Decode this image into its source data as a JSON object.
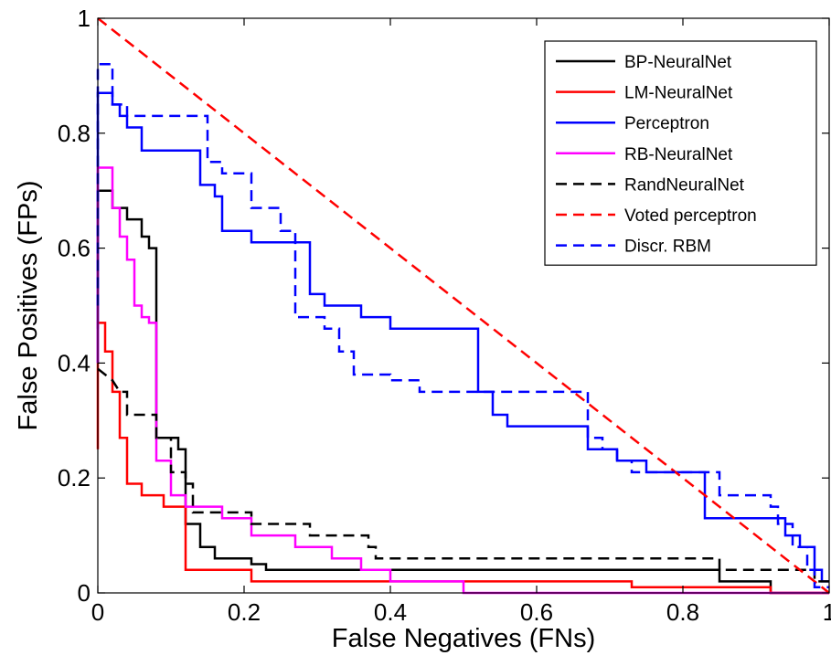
{
  "chart_data": {
    "type": "line",
    "title": "",
    "xlabel": "False Negatives (FNs)",
    "ylabel": "False Positives (FPs)",
    "xlim": [
      0,
      1
    ],
    "ylim": [
      0,
      1
    ],
    "xticks": [
      0,
      0.2,
      0.4,
      0.6,
      0.8,
      1
    ],
    "xtick_labels": [
      "0",
      "0.2",
      "0.4",
      "0.6",
      "0.8",
      "1"
    ],
    "yticks": [
      0,
      0.2,
      0.4,
      0.6,
      0.8,
      1
    ],
    "ytick_labels": [
      "0",
      "0.2",
      "0.4",
      "0.6",
      "0.8",
      "1"
    ],
    "grid": false,
    "legend_position": "top-right",
    "series": [
      {
        "name": "BP-NeuralNet",
        "color": "#000000",
        "dash": "solid",
        "points": [
          [
            0,
            0.46
          ],
          [
            0,
            0.7
          ],
          [
            0.02,
            0.7
          ],
          [
            0.02,
            0.67
          ],
          [
            0.04,
            0.67
          ],
          [
            0.04,
            0.65
          ],
          [
            0.06,
            0.65
          ],
          [
            0.06,
            0.62
          ],
          [
            0.07,
            0.62
          ],
          [
            0.07,
            0.6
          ],
          [
            0.08,
            0.6
          ],
          [
            0.08,
            0.27
          ],
          [
            0.11,
            0.27
          ],
          [
            0.11,
            0.25
          ],
          [
            0.12,
            0.25
          ],
          [
            0.12,
            0.12
          ],
          [
            0.14,
            0.12
          ],
          [
            0.14,
            0.08
          ],
          [
            0.16,
            0.08
          ],
          [
            0.16,
            0.06
          ],
          [
            0.21,
            0.06
          ],
          [
            0.21,
            0.05
          ],
          [
            0.23,
            0.05
          ],
          [
            0.23,
            0.04
          ],
          [
            0.85,
            0.04
          ],
          [
            0.85,
            0.02
          ],
          [
            0.92,
            0.02
          ],
          [
            0.92,
            0.0
          ],
          [
            1.0,
            0.0
          ]
        ]
      },
      {
        "name": "LM-NeuralNet",
        "color": "#ff0000",
        "dash": "solid",
        "points": [
          [
            0,
            0.25
          ],
          [
            0,
            0.47
          ],
          [
            0.01,
            0.47
          ],
          [
            0.01,
            0.42
          ],
          [
            0.02,
            0.42
          ],
          [
            0.02,
            0.35
          ],
          [
            0.03,
            0.35
          ],
          [
            0.03,
            0.27
          ],
          [
            0.04,
            0.27
          ],
          [
            0.04,
            0.19
          ],
          [
            0.06,
            0.19
          ],
          [
            0.06,
            0.17
          ],
          [
            0.09,
            0.17
          ],
          [
            0.09,
            0.15
          ],
          [
            0.12,
            0.15
          ],
          [
            0.12,
            0.04
          ],
          [
            0.21,
            0.04
          ],
          [
            0.21,
            0.02
          ],
          [
            0.73,
            0.02
          ],
          [
            0.73,
            0.01
          ],
          [
            0.92,
            0.01
          ],
          [
            0.92,
            0.0
          ],
          [
            1.0,
            0.0
          ]
        ]
      },
      {
        "name": "Perceptron",
        "color": "#0000ff",
        "dash": "solid",
        "points": [
          [
            0,
            0.4
          ],
          [
            0,
            0.87
          ],
          [
            0.02,
            0.87
          ],
          [
            0.02,
            0.85
          ],
          [
            0.03,
            0.85
          ],
          [
            0.03,
            0.83
          ],
          [
            0.04,
            0.83
          ],
          [
            0.04,
            0.81
          ],
          [
            0.06,
            0.81
          ],
          [
            0.06,
            0.77
          ],
          [
            0.14,
            0.77
          ],
          [
            0.14,
            0.71
          ],
          [
            0.16,
            0.71
          ],
          [
            0.16,
            0.69
          ],
          [
            0.17,
            0.69
          ],
          [
            0.17,
            0.63
          ],
          [
            0.21,
            0.63
          ],
          [
            0.21,
            0.61
          ],
          [
            0.29,
            0.61
          ],
          [
            0.29,
            0.52
          ],
          [
            0.31,
            0.52
          ],
          [
            0.31,
            0.5
          ],
          [
            0.36,
            0.5
          ],
          [
            0.36,
            0.48
          ],
          [
            0.4,
            0.48
          ],
          [
            0.4,
            0.46
          ],
          [
            0.52,
            0.46
          ],
          [
            0.52,
            0.35
          ],
          [
            0.54,
            0.35
          ],
          [
            0.54,
            0.31
          ],
          [
            0.56,
            0.31
          ],
          [
            0.56,
            0.29
          ],
          [
            0.67,
            0.29
          ],
          [
            0.67,
            0.25
          ],
          [
            0.71,
            0.25
          ],
          [
            0.71,
            0.23
          ],
          [
            0.75,
            0.23
          ],
          [
            0.75,
            0.21
          ],
          [
            0.83,
            0.21
          ],
          [
            0.83,
            0.13
          ],
          [
            0.94,
            0.13
          ],
          [
            0.94,
            0.1
          ],
          [
            0.96,
            0.1
          ],
          [
            0.96,
            0.08
          ],
          [
            0.98,
            0.08
          ],
          [
            0.98,
            0.04
          ],
          [
            0.99,
            0.04
          ],
          [
            0.99,
            0.02
          ],
          [
            1.0,
            0.02
          ]
        ]
      },
      {
        "name": "RB-NeuralNet",
        "color": "#ff00ff",
        "dash": "solid",
        "points": [
          [
            0,
            0.4
          ],
          [
            0,
            0.74
          ],
          [
            0.02,
            0.74
          ],
          [
            0.02,
            0.67
          ],
          [
            0.03,
            0.67
          ],
          [
            0.03,
            0.62
          ],
          [
            0.04,
            0.62
          ],
          [
            0.04,
            0.58
          ],
          [
            0.05,
            0.58
          ],
          [
            0.05,
            0.5
          ],
          [
            0.06,
            0.5
          ],
          [
            0.06,
            0.48
          ],
          [
            0.07,
            0.48
          ],
          [
            0.07,
            0.47
          ],
          [
            0.08,
            0.47
          ],
          [
            0.08,
            0.23
          ],
          [
            0.1,
            0.23
          ],
          [
            0.1,
            0.17
          ],
          [
            0.12,
            0.17
          ],
          [
            0.12,
            0.15
          ],
          [
            0.17,
            0.15
          ],
          [
            0.17,
            0.13
          ],
          [
            0.21,
            0.13
          ],
          [
            0.21,
            0.1
          ],
          [
            0.27,
            0.1
          ],
          [
            0.27,
            0.08
          ],
          [
            0.32,
            0.08
          ],
          [
            0.32,
            0.06
          ],
          [
            0.36,
            0.06
          ],
          [
            0.36,
            0.04
          ],
          [
            0.4,
            0.04
          ],
          [
            0.4,
            0.02
          ],
          [
            0.5,
            0.02
          ],
          [
            0.5,
            0.0
          ],
          [
            1.0,
            0.0
          ]
        ]
      },
      {
        "name": "RandNeuralNet",
        "color": "#000000",
        "dash": "dashed",
        "points": [
          [
            0,
            0.39
          ],
          [
            0.02,
            0.37
          ],
          [
            0.03,
            0.35
          ],
          [
            0.04,
            0.35
          ],
          [
            0.04,
            0.31
          ],
          [
            0.08,
            0.31
          ],
          [
            0.08,
            0.27
          ],
          [
            0.1,
            0.27
          ],
          [
            0.1,
            0.21
          ],
          [
            0.12,
            0.21
          ],
          [
            0.12,
            0.19
          ],
          [
            0.13,
            0.19
          ],
          [
            0.13,
            0.14
          ],
          [
            0.21,
            0.14
          ],
          [
            0.21,
            0.12
          ],
          [
            0.27,
            0.12
          ],
          [
            0.27,
            0.12
          ],
          [
            0.29,
            0.12
          ],
          [
            0.29,
            0.1
          ],
          [
            0.37,
            0.1
          ],
          [
            0.37,
            0.08
          ],
          [
            0.38,
            0.08
          ],
          [
            0.38,
            0.06
          ],
          [
            0.85,
            0.06
          ],
          [
            0.85,
            0.04
          ],
          [
            0.98,
            0.04
          ],
          [
            0.98,
            0.02
          ],
          [
            1.0,
            0.02
          ]
        ]
      },
      {
        "name": "Voted perceptron",
        "color": "#ff0000",
        "dash": "dashed",
        "points": [
          [
            0,
            1.0
          ],
          [
            1.0,
            0.0
          ]
        ]
      },
      {
        "name": "Discr. RBM",
        "color": "#0000ff",
        "dash": "dashed",
        "points": [
          [
            0,
            0.5
          ],
          [
            0,
            0.92
          ],
          [
            0.02,
            0.92
          ],
          [
            0.02,
            0.85
          ],
          [
            0.04,
            0.85
          ],
          [
            0.04,
            0.83
          ],
          [
            0.15,
            0.83
          ],
          [
            0.15,
            0.75
          ],
          [
            0.17,
            0.75
          ],
          [
            0.17,
            0.73
          ],
          [
            0.21,
            0.73
          ],
          [
            0.21,
            0.67
          ],
          [
            0.25,
            0.67
          ],
          [
            0.25,
            0.63
          ],
          [
            0.27,
            0.63
          ],
          [
            0.27,
            0.48
          ],
          [
            0.31,
            0.48
          ],
          [
            0.31,
            0.46
          ],
          [
            0.33,
            0.46
          ],
          [
            0.33,
            0.42
          ],
          [
            0.35,
            0.42
          ],
          [
            0.35,
            0.38
          ],
          [
            0.4,
            0.38
          ],
          [
            0.4,
            0.37
          ],
          [
            0.44,
            0.37
          ],
          [
            0.44,
            0.35
          ],
          [
            0.67,
            0.35
          ],
          [
            0.67,
            0.27
          ],
          [
            0.69,
            0.27
          ],
          [
            0.69,
            0.25
          ],
          [
            0.71,
            0.25
          ],
          [
            0.71,
            0.23
          ],
          [
            0.73,
            0.23
          ],
          [
            0.73,
            0.21
          ],
          [
            0.85,
            0.21
          ],
          [
            0.85,
            0.17
          ],
          [
            0.92,
            0.17
          ],
          [
            0.92,
            0.15
          ],
          [
            0.93,
            0.15
          ],
          [
            0.93,
            0.12
          ],
          [
            0.95,
            0.12
          ],
          [
            0.95,
            0.08
          ],
          [
            0.97,
            0.08
          ],
          [
            0.97,
            0.04
          ],
          [
            0.98,
            0.04
          ],
          [
            0.98,
            0.01
          ],
          [
            1.0,
            0.01
          ]
        ]
      }
    ]
  }
}
